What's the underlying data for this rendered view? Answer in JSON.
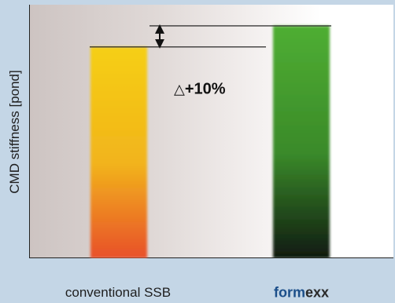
{
  "chart_data": {
    "type": "bar",
    "categories": [
      "conventional SSB",
      "formexx"
    ],
    "values": [
      100,
      110
    ],
    "title": "",
    "xlabel": "",
    "ylabel": "CMD stiffness [pond]",
    "ylim": [
      0,
      120
    ],
    "grid": false,
    "legend": "none",
    "annotation": {
      "symbol": "△",
      "text": "+10%"
    },
    "categories_split": {
      "formexx": [
        "form",
        "exx"
      ]
    }
  },
  "colors": {
    "background": "#c4d6e6",
    "ssb_bar_top": "#f5cf12",
    "ssb_bar_mid": "#f2b41c",
    "ssb_bar_bottom": "#e8502a",
    "formexx_bar_top": "#4fae32",
    "formexx_bar_mid": "#3a8a2a",
    "formexx_bar_bottom": "#101a10",
    "brand_blue": "#1c4f8a",
    "brand_dark": "#2a2a2a"
  },
  "icons": {
    "delta": "triangle-delta-icon",
    "arrow": "double-arrow-icon"
  }
}
